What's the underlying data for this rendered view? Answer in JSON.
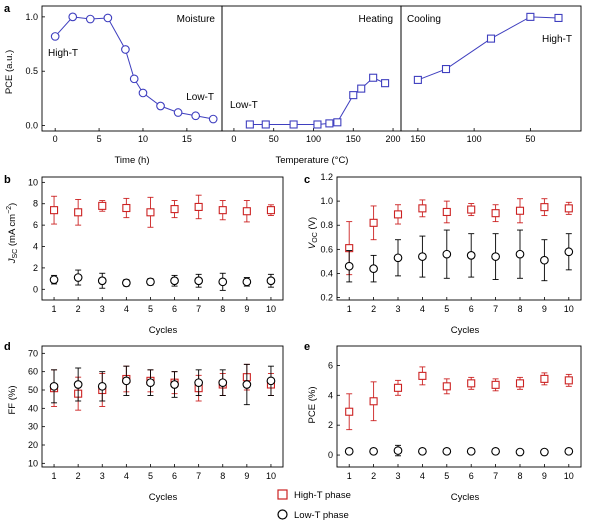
{
  "colors": {
    "blue": "#3f3fbf",
    "red": "#cc2222",
    "black": "#000000"
  },
  "chart_data": [
    {
      "panel": "a",
      "type": "line",
      "panel_label": "a",
      "ylabel": "PCE (a.u.)",
      "yticks": [
        "0.0",
        "0.5",
        "1.0"
      ],
      "ylim": [
        -0.05,
        1.1
      ],
      "annotation": "Moisture",
      "label_high": "High-T",
      "label_low": "Low-T",
      "xlabel": "Time (h)",
      "xticks": [
        "0",
        "5",
        "10",
        "15"
      ],
      "xlim": [
        -1.5,
        19
      ],
      "series": [
        {
          "x": [
            0,
            2,
            4,
            6,
            8,
            9,
            10,
            12,
            14,
            16,
            18
          ],
          "y": [
            0.82,
            1.0,
            0.98,
            0.99,
            0.7,
            0.43,
            0.3,
            0.18,
            0.12,
            0.09,
            0.06
          ],
          "marker": "circle"
        }
      ]
    },
    {
      "panel": "a-heating",
      "type": "line",
      "annotation": "Heating",
      "label_low": "Low-T",
      "xlabel": "Temperature (°C)",
      "xticks": [
        "0",
        "50",
        "100",
        "150",
        "200"
      ],
      "xlim": [
        -15,
        210
      ],
      "series": [
        {
          "x": [
            20,
            40,
            75,
            105,
            120,
            130,
            150,
            160,
            175,
            190
          ],
          "y": [
            0.01,
            0.01,
            0.01,
            0.01,
            0.02,
            0.03,
            0.28,
            0.34,
            0.44,
            0.39
          ],
          "marker": "square"
        }
      ]
    },
    {
      "panel": "a-cooling",
      "type": "line",
      "annotation": "Cooling",
      "label_high": "High-T",
      "xticks": [
        "150",
        "100",
        "50"
      ],
      "xlim": [
        165,
        5
      ],
      "x_reversed": true,
      "series": [
        {
          "x": [
            150,
            125,
            85,
            50,
            25
          ],
          "y": [
            0.42,
            0.52,
            0.8,
            1.0,
            0.99
          ],
          "marker": "square"
        }
      ]
    },
    {
      "panel": "b",
      "type": "scatter",
      "panel_label": "b",
      "ylabel": "J_SC (mA cm^-2)",
      "ylabel_main": "J",
      "ylabel_sub": "SC",
      "ylabel_rest": " (mA cm",
      "ylabel_sup": "−2",
      "ylabel_end": ")",
      "yticks": [
        "0",
        "2",
        "4",
        "6",
        "8",
        "10"
      ],
      "ylim": [
        -1,
        10.5
      ],
      "xlabel": "Cycles",
      "xticks": [
        "1",
        "2",
        "3",
        "4",
        "5",
        "6",
        "7",
        "8",
        "9",
        "10"
      ],
      "series": [
        {
          "name": "High-T phase",
          "x": [
            1,
            2,
            3,
            4,
            5,
            6,
            7,
            8,
            9,
            10
          ],
          "y": [
            7.4,
            7.2,
            7.8,
            7.6,
            7.2,
            7.5,
            7.7,
            7.4,
            7.3,
            7.4
          ],
          "err": [
            1.3,
            1.2,
            0.5,
            0.9,
            1.4,
            0.8,
            1.1,
            0.9,
            1.0,
            0.5
          ],
          "marker": "square"
        },
        {
          "name": "Low-T phase",
          "x": [
            1,
            2,
            3,
            4,
            5,
            6,
            7,
            8,
            9,
            10
          ],
          "y": [
            0.9,
            1.1,
            0.8,
            0.6,
            0.7,
            0.8,
            0.8,
            0.7,
            0.7,
            0.8
          ],
          "err": [
            0.4,
            0.7,
            0.7,
            0.3,
            0.3,
            0.5,
            0.6,
            0.8,
            0.4,
            0.6
          ],
          "marker": "circle"
        }
      ]
    },
    {
      "panel": "c",
      "type": "scatter",
      "panel_label": "c",
      "ylabel": "V_OC (V)",
      "ylabel_main": "V",
      "ylabel_sub": "OC",
      "ylabel_rest": " (V)",
      "yticks": [
        "0.2",
        "0.4",
        "0.6",
        "0.8",
        "1.0",
        "1.2"
      ],
      "ylim": [
        0.18,
        1.2
      ],
      "xlabel": "Cycles",
      "xticks": [
        "1",
        "2",
        "3",
        "4",
        "5",
        "6",
        "7",
        "8",
        "9",
        "10"
      ],
      "series": [
        {
          "name": "High-T phase",
          "x": [
            1,
            2,
            3,
            4,
            5,
            6,
            7,
            8,
            9,
            10
          ],
          "y": [
            0.61,
            0.82,
            0.89,
            0.94,
            0.91,
            0.93,
            0.9,
            0.92,
            0.95,
            0.94
          ],
          "err": [
            0.22,
            0.14,
            0.08,
            0.07,
            0.09,
            0.05,
            0.07,
            0.1,
            0.07,
            0.05
          ],
          "marker": "square"
        },
        {
          "name": "Low-T phase",
          "x": [
            1,
            2,
            3,
            4,
            5,
            6,
            7,
            8,
            9,
            10
          ],
          "y": [
            0.46,
            0.44,
            0.53,
            0.54,
            0.56,
            0.55,
            0.54,
            0.56,
            0.51,
            0.58
          ],
          "err": [
            0.13,
            0.11,
            0.15,
            0.17,
            0.2,
            0.18,
            0.19,
            0.2,
            0.17,
            0.15
          ],
          "marker": "circle"
        }
      ]
    },
    {
      "panel": "d",
      "type": "scatter",
      "panel_label": "d",
      "ylabel": "FF (%)",
      "yticks": [
        "10",
        "20",
        "30",
        "40",
        "50",
        "60",
        "70"
      ],
      "ylim": [
        8,
        74
      ],
      "xlabel": "Cycles",
      "xticks": [
        "1",
        "2",
        "3",
        "4",
        "5",
        "6",
        "7",
        "8",
        "9",
        "10"
      ],
      "series": [
        {
          "name": "High-T phase",
          "x": [
            1,
            2,
            3,
            4,
            5,
            6,
            7,
            8,
            9,
            10
          ],
          "y": [
            51,
            48,
            50,
            56,
            55,
            54,
            51,
            53,
            57,
            53
          ],
          "err": [
            10,
            9,
            9,
            7,
            6,
            6,
            7,
            6,
            7,
            6
          ],
          "marker": "square"
        },
        {
          "name": "Low-T phase",
          "x": [
            1,
            2,
            3,
            4,
            5,
            6,
            7,
            8,
            9,
            10
          ],
          "y": [
            52,
            53,
            52,
            55,
            54,
            53,
            54,
            54,
            53,
            55
          ],
          "err": [
            9,
            9,
            8,
            8,
            7,
            7,
            7,
            7,
            11,
            8
          ],
          "marker": "circle"
        }
      ]
    },
    {
      "panel": "e",
      "type": "scatter",
      "panel_label": "e",
      "ylabel": "PCE (%)",
      "yticks": [
        "0",
        "2",
        "4",
        "6"
      ],
      "ylim": [
        -0.8,
        7.3
      ],
      "xlabel": "Cycles",
      "xticks": [
        "1",
        "2",
        "3",
        "4",
        "5",
        "6",
        "7",
        "8",
        "9",
        "10"
      ],
      "series": [
        {
          "name": "High-T phase",
          "x": [
            1,
            2,
            3,
            4,
            5,
            6,
            7,
            8,
            9,
            10
          ],
          "y": [
            2.9,
            3.6,
            4.5,
            5.3,
            4.6,
            4.8,
            4.7,
            4.8,
            5.1,
            5.0
          ],
          "err": [
            1.2,
            1.3,
            0.5,
            0.6,
            0.5,
            0.4,
            0.4,
            0.4,
            0.4,
            0.4
          ],
          "marker": "square"
        },
        {
          "name": "Low-T phase",
          "x": [
            1,
            2,
            3,
            4,
            5,
            6,
            7,
            8,
            9,
            10
          ],
          "y": [
            0.25,
            0.25,
            0.3,
            0.25,
            0.25,
            0.25,
            0.25,
            0.2,
            0.2,
            0.25
          ],
          "err": [
            0.05,
            0.05,
            0.35,
            0.05,
            0.05,
            0.05,
            0.05,
            0.05,
            0.05,
            0.05
          ],
          "marker": "circle"
        }
      ]
    }
  ],
  "legend": {
    "items": [
      "High-T phase",
      "Low-T phase"
    ],
    "placement": "bottom-center"
  }
}
